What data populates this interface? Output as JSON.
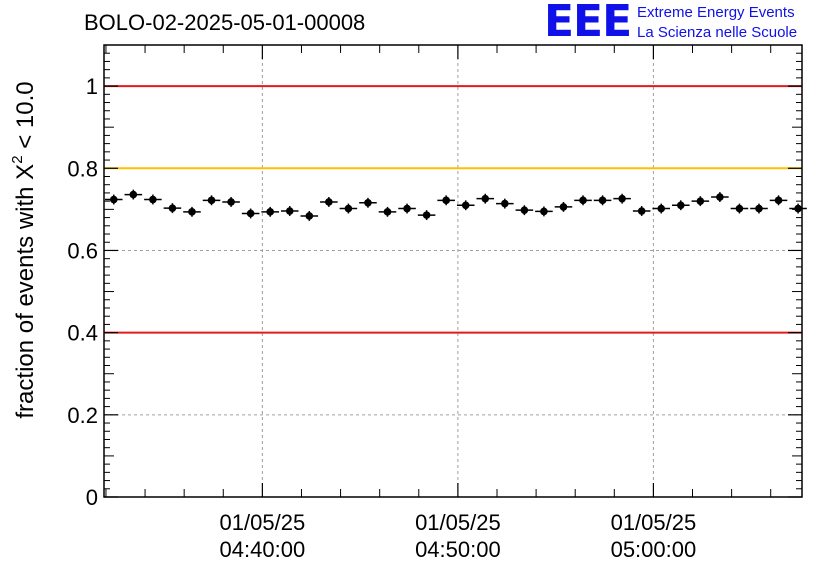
{
  "chart_data": {
    "type": "scatter",
    "title": "BOLO-02-2025-05-01-00008",
    "ylabel_text": "fraction of events with",
    "ylabel_symbol": "Χ",
    "ylabel_sup": "2",
    "ylabel_rest": " < 10.0",
    "xlabel": "",
    "ylim": [
      0,
      1.1
    ],
    "y_ticks": [
      0,
      0.2,
      0.4,
      0.6,
      0.8,
      1
    ],
    "y_tick_labels": [
      "0",
      "0.2",
      "0.4",
      "0.6",
      "0.8",
      "1"
    ],
    "x_ticks": [
      {
        "date": "01/05/25",
        "time": "04:40:00",
        "minute": 40
      },
      {
        "date": "01/05/25",
        "time": "04:50:00",
        "minute": 50
      },
      {
        "date": "01/05/25",
        "time": "05:00:00",
        "minute": 60
      }
    ],
    "xlim_minutes": [
      31.9,
      67.6
    ],
    "grid": true,
    "reference_lines": [
      {
        "y": 1.0,
        "color": "#e31a1c"
      },
      {
        "y": 0.8,
        "color": "#ffc000"
      },
      {
        "y": 0.4,
        "color": "#e31a1c"
      }
    ],
    "point_color": "#000000",
    "bin_width_minutes": 1,
    "series": [
      {
        "name": "fraction",
        "x_minutes": [
          32.4,
          33.4,
          34.4,
          35.4,
          36.4,
          37.4,
          38.4,
          39.4,
          40.4,
          41.4,
          42.4,
          43.4,
          44.4,
          45.4,
          46.4,
          47.4,
          48.4,
          49.4,
          50.4,
          51.4,
          52.4,
          53.4,
          54.4,
          55.4,
          56.4,
          57.4,
          58.4,
          59.4,
          60.4,
          61.4,
          62.4,
          63.4,
          64.4,
          65.4,
          66.4,
          67.4
        ],
        "values": [
          0.724,
          0.736,
          0.724,
          0.703,
          0.694,
          0.722,
          0.718,
          0.69,
          0.694,
          0.696,
          0.684,
          0.718,
          0.702,
          0.716,
          0.694,
          0.702,
          0.686,
          0.722,
          0.71,
          0.726,
          0.714,
          0.698,
          0.695,
          0.706,
          0.722,
          0.722,
          0.726,
          0.696,
          0.702,
          0.71,
          0.72,
          0.73,
          0.702,
          0.702,
          0.722,
          0.702
        ],
        "errors": [
          0.012,
          0.012,
          0.012,
          0.012,
          0.012,
          0.012,
          0.012,
          0.012,
          0.012,
          0.012,
          0.012,
          0.012,
          0.012,
          0.012,
          0.012,
          0.012,
          0.012,
          0.012,
          0.012,
          0.012,
          0.012,
          0.012,
          0.012,
          0.012,
          0.012,
          0.012,
          0.012,
          0.012,
          0.012,
          0.012,
          0.012,
          0.012,
          0.012,
          0.012,
          0.012,
          0.012
        ]
      }
    ]
  },
  "logo": {
    "mark": "EEE",
    "line1": "Extreme Energy Events",
    "line2": "La Scienza nelle Scuole",
    "color": "#1010e8"
  }
}
